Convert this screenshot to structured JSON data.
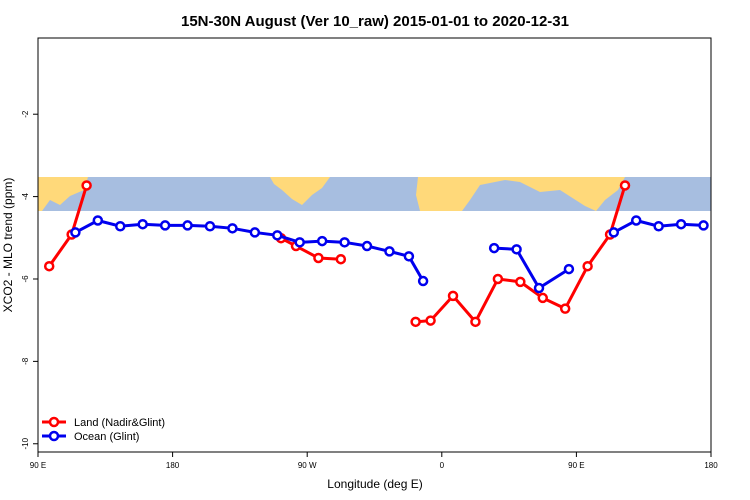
{
  "chart_data": {
    "type": "line",
    "title": "15N-30N August (Ver 10_raw)   2015-01-01 to 2020-12-31",
    "x_label": "Longitude (deg E)",
    "y_label": "XCO2 - MLO trend (ppm)",
    "xlim": [
      90,
      540
    ],
    "xticks": [
      {
        "value": 90,
        "label": "90 E"
      },
      180,
      {
        "value": 270,
        "label": "90 W"
      },
      {
        "value": 360,
        "label": "0"
      },
      {
        "value": 450,
        "label": "90 E"
      },
      {
        "value": 540,
        "label": "180"
      }
    ],
    "ylim": [
      -10.2,
      -0.15
    ],
    "yticks": [
      -2,
      -4,
      -6,
      -8,
      -10
    ],
    "legend": "bottomleft",
    "series": [
      {
        "name": "Land (Nadir&Glint)",
        "color": "#ff0000",
        "x": [
          97.5,
          112.5,
          122.5,
          null,
          252.5,
          262.5,
          277.5,
          292.5,
          null,
          342.5,
          352.5,
          367.5,
          382.5,
          397.5,
          412.5,
          427.5,
          442.5,
          457.5,
          472.5,
          482.5
        ],
        "values": [
          -5.69,
          -4.92,
          -3.73,
          null,
          -5.01,
          -5.2,
          -5.49,
          -5.52,
          null,
          -7.04,
          -7.01,
          -6.41,
          -7.04,
          -6.0,
          -6.07,
          -6.46,
          -6.72,
          -5.69,
          -4.92,
          -3.73
        ]
      },
      {
        "name": "Ocean (Glint)",
        "color": "#0000ee",
        "x": [
          115,
          130,
          145,
          160,
          175,
          190,
          205,
          220,
          235,
          250,
          265,
          280,
          295,
          310,
          325,
          338,
          347.5,
          null,
          395,
          410,
          425,
          445,
          null,
          475,
          490,
          505,
          520,
          535
        ],
        "values": [
          -4.87,
          -4.58,
          -4.72,
          -4.67,
          -4.7,
          -4.7,
          -4.72,
          -4.77,
          -4.87,
          -4.94,
          -5.11,
          -5.08,
          -5.11,
          -5.2,
          -5.33,
          -5.45,
          -6.05,
          null,
          -5.25,
          -5.28,
          -6.22,
          -5.76,
          null,
          -4.87,
          -4.58,
          -4.72,
          -4.67,
          -4.7
        ]
      }
    ]
  }
}
